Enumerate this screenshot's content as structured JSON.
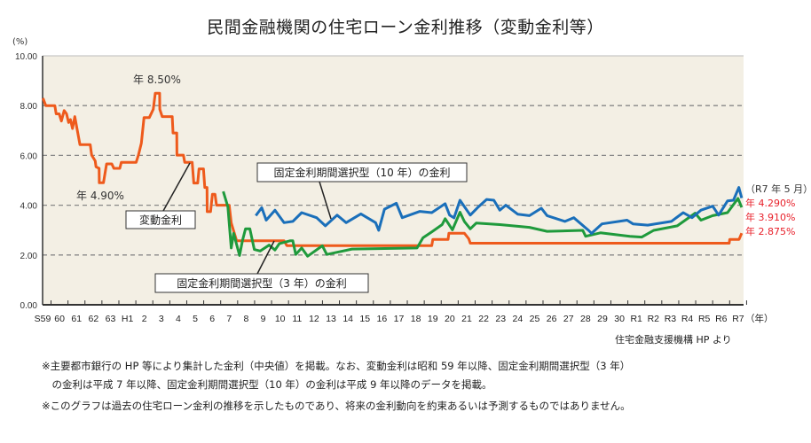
{
  "title": "民間金融機関の住宅ローン金利推移（変動金利等）",
  "source": "住宅金融支援機構 HP より",
  "notes": [
    "※主要都市銀行の HP 等により集計した金利（中央値）を掲載。なお、変動金利は昭和 59 年以降、固定金利期間選択型（3 年）",
    "　の金利は平成 7 年以降、固定金利期間選択型（10 年）の金利は平成 9 年以降のデータを掲載。",
    "※このグラフは過去の住宅ローン金利の推移を示したものであり、将来の金利動向を約束あるいは予測するものではありません。"
  ],
  "right_labels": {
    "date": "（R7 年 5 月）",
    "values": [
      "年 4.290%",
      "年 3.910%",
      "年 2.875%"
    ],
    "color": "#e8202a"
  },
  "chart_data": {
    "type": "line",
    "title": "民間金融機関の住宅ローン金利推移（変動金利等）",
    "ylabel": "(%)",
    "xlabel": "（年）",
    "ylim": [
      0,
      10
    ],
    "xlim": [
      1984,
      2025.3
    ],
    "yticks": [
      "0.00",
      "2.00",
      "4.00",
      "6.00",
      "8.00",
      "10.00"
    ],
    "xtick_labels": [
      "S59",
      "60",
      "61",
      "62",
      "63",
      "H1",
      "2",
      "3",
      "4",
      "5",
      "6",
      "7",
      "8",
      "9",
      "10",
      "11",
      "12",
      "13",
      "14",
      "15",
      "16",
      "17",
      "18",
      "19",
      "20",
      "21",
      "22",
      "23",
      "24",
      "25",
      "26",
      "27",
      "28",
      "29",
      "30",
      "R1",
      "R2",
      "R3",
      "R4",
      "R5",
      "R6",
      "R7"
    ],
    "xtick_years_start": 1984,
    "grid": "horizontal dashed",
    "background": "#f3efe4",
    "annotations": {
      "peak": "年 8.50%",
      "low": "年 4.90%",
      "variable_label": "変動金利",
      "fixed10_label": "固定金利期間選択型（10 年）の金利",
      "fixed3_label": "固定金利期間選択型（3 年）の金利"
    },
    "series": [
      {
        "name": "変動金利",
        "color": "#ee5a1c",
        "points": [
          [
            1984.02,
            8.3
          ],
          [
            1984.19,
            8.0
          ],
          [
            1984.72,
            8.0
          ],
          [
            1984.8,
            7.67
          ],
          [
            1984.98,
            7.67
          ],
          [
            1985.11,
            7.38
          ],
          [
            1985.27,
            7.8
          ],
          [
            1985.41,
            7.67
          ],
          [
            1985.53,
            7.32
          ],
          [
            1985.64,
            7.44
          ],
          [
            1985.76,
            7.08
          ],
          [
            1985.9,
            7.56
          ],
          [
            1986.2,
            6.43
          ],
          [
            1986.81,
            6.43
          ],
          [
            1986.89,
            6.01
          ],
          [
            1987.1,
            5.78
          ],
          [
            1987.15,
            5.54
          ],
          [
            1987.33,
            5.48
          ],
          [
            1987.34,
            4.9
          ],
          [
            1987.59,
            4.9
          ],
          [
            1987.77,
            5.66
          ],
          [
            1988.08,
            5.66
          ],
          [
            1988.2,
            5.48
          ],
          [
            1988.55,
            5.48
          ],
          [
            1988.64,
            5.72
          ],
          [
            1989.51,
            5.72
          ],
          [
            1989.65,
            6.01
          ],
          [
            1989.82,
            6.49
          ],
          [
            1989.98,
            7.52
          ],
          [
            1990.29,
            7.52
          ],
          [
            1990.52,
            7.85
          ],
          [
            1990.64,
            8.5
          ],
          [
            1990.9,
            8.5
          ],
          [
            1990.91,
            7.85
          ],
          [
            1991.05,
            7.56
          ],
          [
            1991.64,
            7.56
          ],
          [
            1991.69,
            6.9
          ],
          [
            1991.91,
            6.9
          ],
          [
            1991.92,
            6.01
          ],
          [
            1992.3,
            6.01
          ],
          [
            1992.38,
            5.72
          ],
          [
            1992.82,
            5.72
          ],
          [
            1992.91,
            4.89
          ],
          [
            1993.14,
            4.89
          ],
          [
            1993.22,
            5.46
          ],
          [
            1993.48,
            5.46
          ],
          [
            1993.56,
            4.71
          ],
          [
            1993.69,
            4.71
          ],
          [
            1993.7,
            3.74
          ],
          [
            1993.9,
            3.74
          ],
          [
            1994.01,
            4.44
          ],
          [
            1994.16,
            4.44
          ],
          [
            1994.25,
            4.0
          ],
          [
            1995.0,
            4.0
          ],
          [
            1995.12,
            3.29
          ],
          [
            1995.44,
            2.57
          ],
          [
            1998.23,
            2.57
          ],
          [
            1998.4,
            2.375
          ],
          [
            2006.94,
            2.375
          ],
          [
            2007.0,
            2.625
          ],
          [
            2007.9,
            2.625
          ],
          [
            2007.95,
            2.875
          ],
          [
            2008.86,
            2.875
          ],
          [
            2009.12,
            2.65
          ],
          [
            2009.21,
            2.475
          ],
          [
            2024.47,
            2.475
          ],
          [
            2024.5,
            2.625
          ],
          [
            2025.05,
            2.625
          ],
          [
            2025.21,
            2.875
          ]
        ]
      },
      {
        "name": "固定金利期間選択型（3 年）",
        "color": "#1f9a3c",
        "points": [
          [
            1994.65,
            4.55
          ],
          [
            1994.92,
            3.94
          ],
          [
            1995.12,
            2.28
          ],
          [
            1995.26,
            2.87
          ],
          [
            1995.61,
            1.98
          ],
          [
            1995.78,
            2.57
          ],
          [
            1995.96,
            3.05
          ],
          [
            1996.22,
            3.05
          ],
          [
            1996.48,
            2.22
          ],
          [
            1996.83,
            2.16
          ],
          [
            1997.35,
            2.4
          ],
          [
            1997.7,
            2.2
          ],
          [
            1997.96,
            2.46
          ],
          [
            1998.58,
            2.57
          ],
          [
            1998.75,
            2.57
          ],
          [
            1998.92,
            2.02
          ],
          [
            1999.27,
            2.28
          ],
          [
            1999.62,
            1.95
          ],
          [
            2000.49,
            2.37
          ],
          [
            2000.75,
            2.02
          ],
          [
            2002.24,
            2.24
          ],
          [
            2006.07,
            2.28
          ],
          [
            2006.42,
            2.69
          ],
          [
            2006.94,
            2.93
          ],
          [
            2007.55,
            3.22
          ],
          [
            2007.73,
            3.46
          ],
          [
            2008.16,
            3.01
          ],
          [
            2008.6,
            3.72
          ],
          [
            2008.86,
            3.35
          ],
          [
            2009.21,
            3.05
          ],
          [
            2009.56,
            3.28
          ],
          [
            2010.95,
            3.22
          ],
          [
            2012.7,
            3.11
          ],
          [
            2013.74,
            2.95
          ],
          [
            2015.84,
            2.99
          ],
          [
            2016.01,
            2.75
          ],
          [
            2016.88,
            2.89
          ],
          [
            2018.62,
            2.75
          ],
          [
            2019.32,
            2.72
          ],
          [
            2020.02,
            2.99
          ],
          [
            2021.41,
            3.17
          ],
          [
            2022.46,
            3.68
          ],
          [
            2022.81,
            3.4
          ],
          [
            2023.5,
            3.58
          ],
          [
            2024.37,
            3.7
          ],
          [
            2024.99,
            4.27
          ],
          [
            2025.21,
            3.91
          ]
        ]
      },
      {
        "name": "固定金利期間選択型（10 年）",
        "color": "#1a6fba",
        "points": [
          [
            1996.57,
            3.58
          ],
          [
            1996.92,
            3.9
          ],
          [
            1997.18,
            3.4
          ],
          [
            1997.7,
            3.8
          ],
          [
            1998.23,
            3.3
          ],
          [
            1998.75,
            3.35
          ],
          [
            1999.27,
            3.7
          ],
          [
            2000.15,
            3.5
          ],
          [
            2000.67,
            3.17
          ],
          [
            2001.36,
            3.6
          ],
          [
            2001.89,
            3.3
          ],
          [
            2002.76,
            3.65
          ],
          [
            2003.63,
            3.3
          ],
          [
            2003.81,
            2.99
          ],
          [
            2004.15,
            3.84
          ],
          [
            2004.85,
            4.08
          ],
          [
            2005.2,
            3.5
          ],
          [
            2006.24,
            3.75
          ],
          [
            2006.94,
            3.7
          ],
          [
            2007.73,
            4.06
          ],
          [
            2007.99,
            3.6
          ],
          [
            2008.25,
            3.49
          ],
          [
            2008.6,
            4.2
          ],
          [
            2009.21,
            3.6
          ],
          [
            2009.64,
            3.9
          ],
          [
            2010.17,
            4.23
          ],
          [
            2010.6,
            4.2
          ],
          [
            2010.95,
            3.8
          ],
          [
            2011.3,
            4.0
          ],
          [
            2012.0,
            3.64
          ],
          [
            2012.7,
            3.58
          ],
          [
            2013.4,
            3.88
          ],
          [
            2013.74,
            3.58
          ],
          [
            2014.79,
            3.35
          ],
          [
            2015.31,
            3.5
          ],
          [
            2016.18,
            2.99
          ],
          [
            2016.36,
            2.87
          ],
          [
            2016.97,
            3.25
          ],
          [
            2018.45,
            3.4
          ],
          [
            2018.8,
            3.25
          ],
          [
            2019.67,
            3.2
          ],
          [
            2021.06,
            3.35
          ],
          [
            2021.76,
            3.7
          ],
          [
            2022.28,
            3.5
          ],
          [
            2022.81,
            3.8
          ],
          [
            2023.5,
            3.96
          ],
          [
            2023.85,
            3.6
          ],
          [
            2024.37,
            4.17
          ],
          [
            2024.72,
            4.2
          ],
          [
            2025.04,
            4.71
          ],
          [
            2025.21,
            4.29
          ]
        ]
      }
    ]
  }
}
